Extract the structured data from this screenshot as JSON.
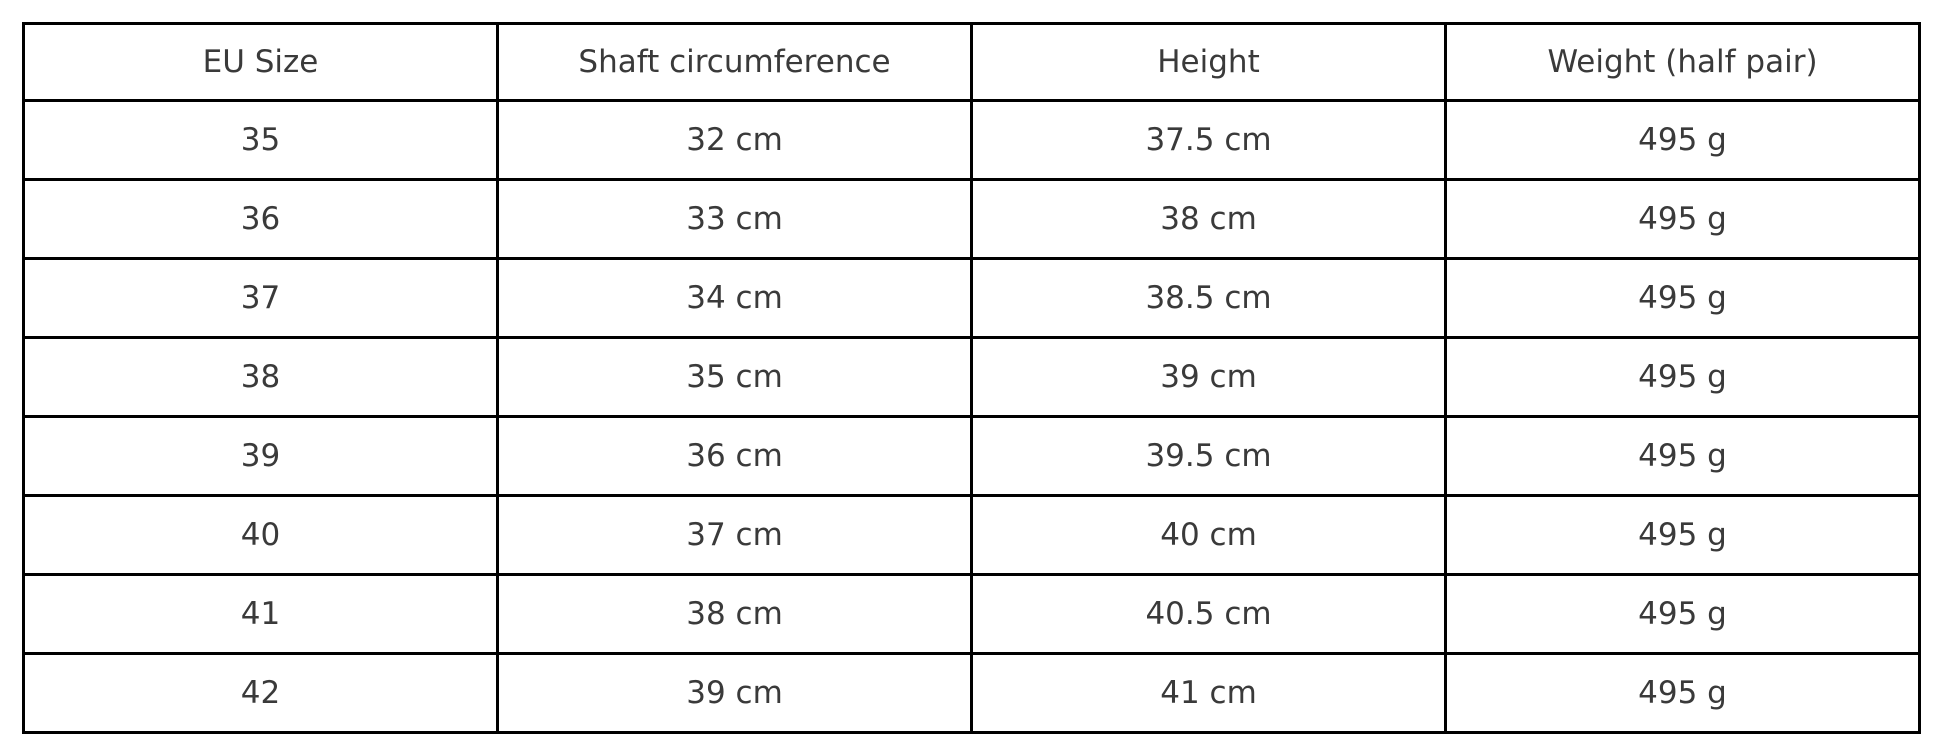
{
  "table": {
    "headers": [
      "EU Size",
      "Shaft circumference",
      "Height",
      "Weight (half pair)"
    ],
    "rows": [
      [
        "35",
        "32 cm",
        "37.5 cm",
        "495 g"
      ],
      [
        "36",
        "33 cm",
        "38 cm",
        "495 g"
      ],
      [
        "37",
        "34 cm",
        "38.5 cm",
        "495 g"
      ],
      [
        "38",
        "35 cm",
        "39 cm",
        "495 g"
      ],
      [
        "39",
        "36 cm",
        "39.5 cm",
        "495 g"
      ],
      [
        "40",
        "37 cm",
        "40 cm",
        "495 g"
      ],
      [
        "41",
        "38 cm",
        "40.5 cm",
        "495 g"
      ],
      [
        "42",
        "39 cm",
        "41 cm",
        "495 g"
      ]
    ]
  },
  "chart_data": {
    "type": "table",
    "title": "",
    "columns": [
      "EU Size",
      "Shaft circumference",
      "Height",
      "Weight (half pair)"
    ],
    "rows": [
      [
        "35",
        "32 cm",
        "37.5 cm",
        "495 g"
      ],
      [
        "36",
        "33 cm",
        "38 cm",
        "495 g"
      ],
      [
        "37",
        "34 cm",
        "38.5 cm",
        "495 g"
      ],
      [
        "38",
        "35 cm",
        "39 cm",
        "495 g"
      ],
      [
        "39",
        "36 cm",
        "39.5 cm",
        "495 g"
      ],
      [
        "40",
        "37 cm",
        "40 cm",
        "495 g"
      ],
      [
        "41",
        "38 cm",
        "40.5 cm",
        "495 g"
      ],
      [
        "42",
        "39 cm",
        "41 cm",
        "495 g"
      ]
    ],
    "layout": {
      "grid": true,
      "border_color": "#000000",
      "text_color": "#3a3a3a",
      "background": "#ffffff"
    }
  },
  "colors": {
    "border": "#000000",
    "text": "#3a3a3a",
    "background": "#ffffff"
  }
}
